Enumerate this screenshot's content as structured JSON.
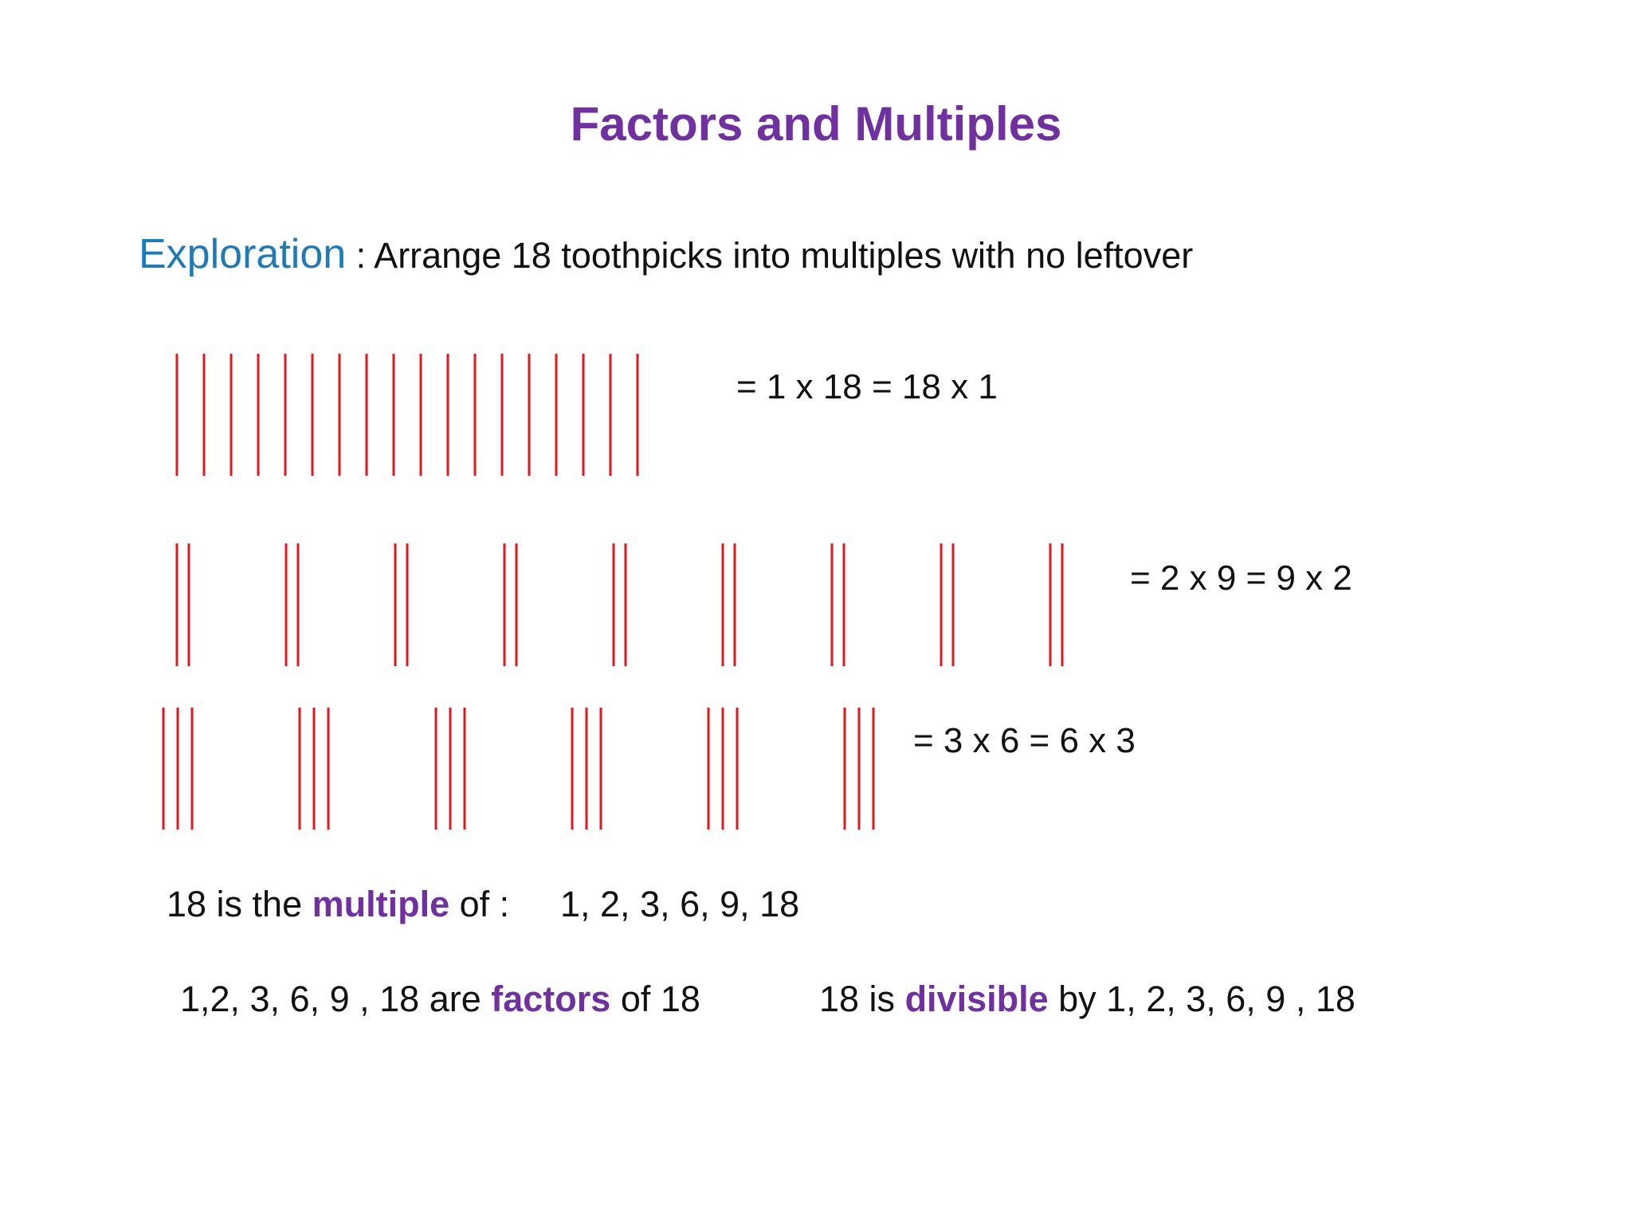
{
  "title": "Factors and Multiples",
  "exploration": {
    "label": "Exploration",
    "text": " : Arrange 18 toothpicks into multiples with no leftover"
  },
  "arrangements": [
    {
      "groups": 18,
      "group_size": 1,
      "equation": "= 1 x 18 = 18 x 1"
    },
    {
      "groups": 9,
      "group_size": 2,
      "equation": "= 2 x 9 = 9 x 2"
    },
    {
      "groups": 6,
      "group_size": 3,
      "equation": "= 3 x 6 = 6 x 3"
    }
  ],
  "multiple_statement": {
    "prefix": "18 is the ",
    "keyword": "multiple",
    "suffix": " of :",
    "values": "1, 2, 3, 6, 9, 18"
  },
  "factors_statement": {
    "prefix": "1,2, 3, 6, 9 , 18 are ",
    "keyword": "factors",
    "suffix": " of 18"
  },
  "divisible_statement": {
    "prefix": "18 is ",
    "keyword": "divisible",
    "suffix": " by 1, 2, 3, 6, 9 , 18"
  },
  "colors": {
    "title": "#7030A0",
    "exploration": "#1F7AB6",
    "highlight": "#7030A0",
    "toothpick": "#E3171E"
  }
}
